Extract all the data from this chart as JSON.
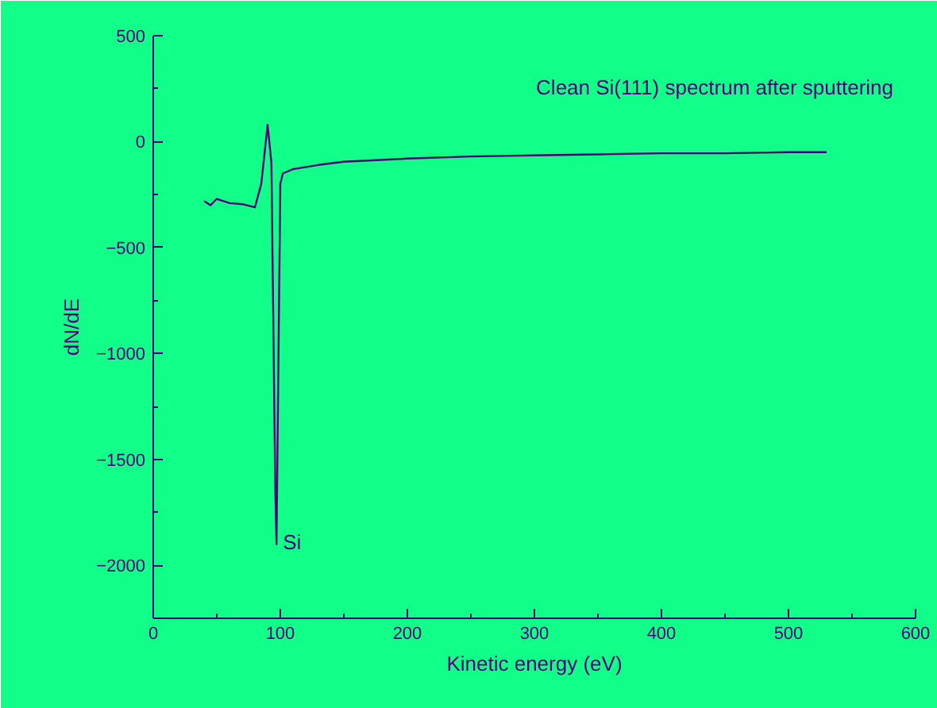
{
  "chart_data": {
    "type": "line",
    "xlabel": "Kinetic energy (eV)",
    "ylabel": "dN/dE",
    "annotations": [
      "Clean Si(111) spectrum after sputtering",
      {
        "text": "Si",
        "x": 97,
        "y": -1900
      }
    ],
    "x": [
      40,
      45,
      50,
      60,
      70,
      80,
      85,
      90,
      93,
      96,
      97,
      100,
      102,
      110,
      130,
      150,
      200,
      250,
      300,
      350,
      400,
      450,
      500,
      530
    ],
    "series": [
      {
        "color": "#50007a",
        "values": [
          -280,
          -300,
          -270,
          -290,
          -295,
          -310,
          -200,
          80,
          -100,
          -1620,
          -1900,
          -200,
          -150,
          -130,
          -110,
          -95,
          -80,
          -70,
          -65,
          -60,
          -55,
          -55,
          -50,
          -50
        ]
      }
    ],
    "xlim": [
      0,
      600
    ],
    "ylim": [
      -2250,
      500
    ],
    "xticks": [
      0,
      100,
      200,
      300,
      400,
      500,
      600
    ],
    "yticks": [
      -2000,
      -1500,
      -1000,
      -500,
      0,
      500
    ],
    "grid": false,
    "marker": "none",
    "line_style": "solid"
  }
}
